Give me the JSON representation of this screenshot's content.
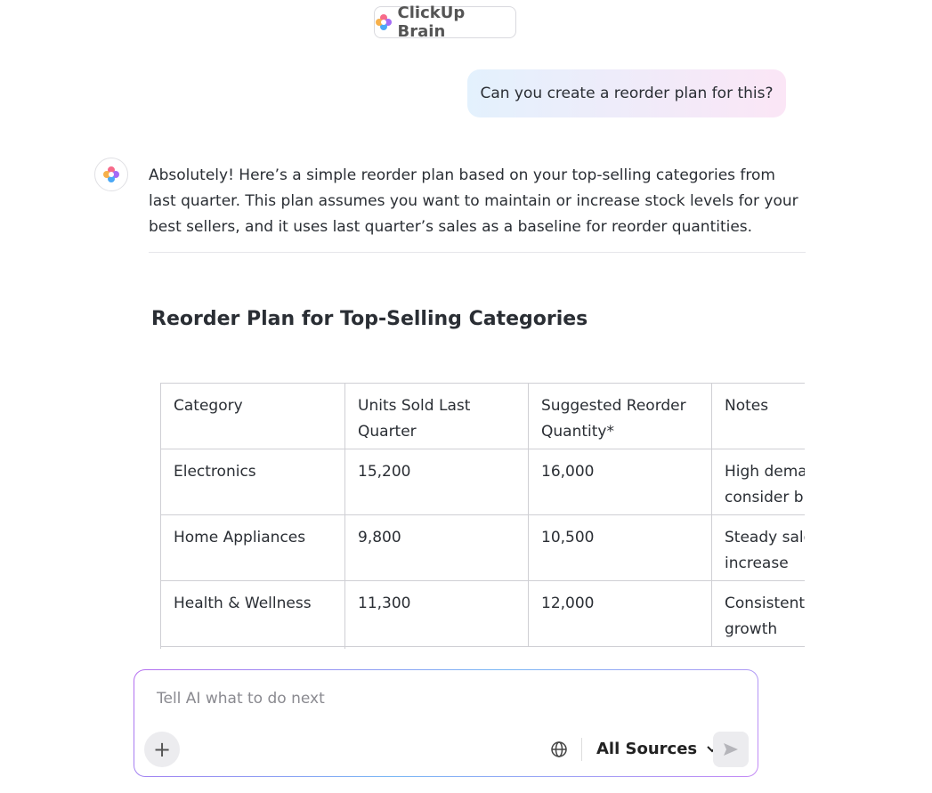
{
  "header": {
    "title": "ClickUp Brain"
  },
  "user_message": "Can you create a reorder plan for this?",
  "response": {
    "text": "Absolutely! Here’s a simple reorder plan based on your top-selling categories from last quarter. This plan assumes you want to maintain or increase stock levels for your best sellers, and it uses last quarter’s sales as a baseline for reorder quantities.",
    "heading": "Reorder Plan for Top-Selling Categories",
    "table": {
      "columns": [
        "Category",
        "Units Sold Last Quarter",
        "Suggested Reorder Quantity*",
        "Notes"
      ],
      "rows": [
        [
          "Electronics",
          "15,200",
          "16,000",
          [
            "High dema",
            "consider b"
          ]
        ],
        [
          "Home Appliances",
          "9,800",
          "10,500",
          [
            "Steady sale",
            "increase"
          ]
        ],
        [
          "Health & Wellness",
          "11,300",
          "12,000",
          [
            "Consistent",
            "growth"
          ]
        ]
      ]
    }
  },
  "input": {
    "placeholder": "Tell AI what to do next",
    "sources": "All Sources"
  }
}
